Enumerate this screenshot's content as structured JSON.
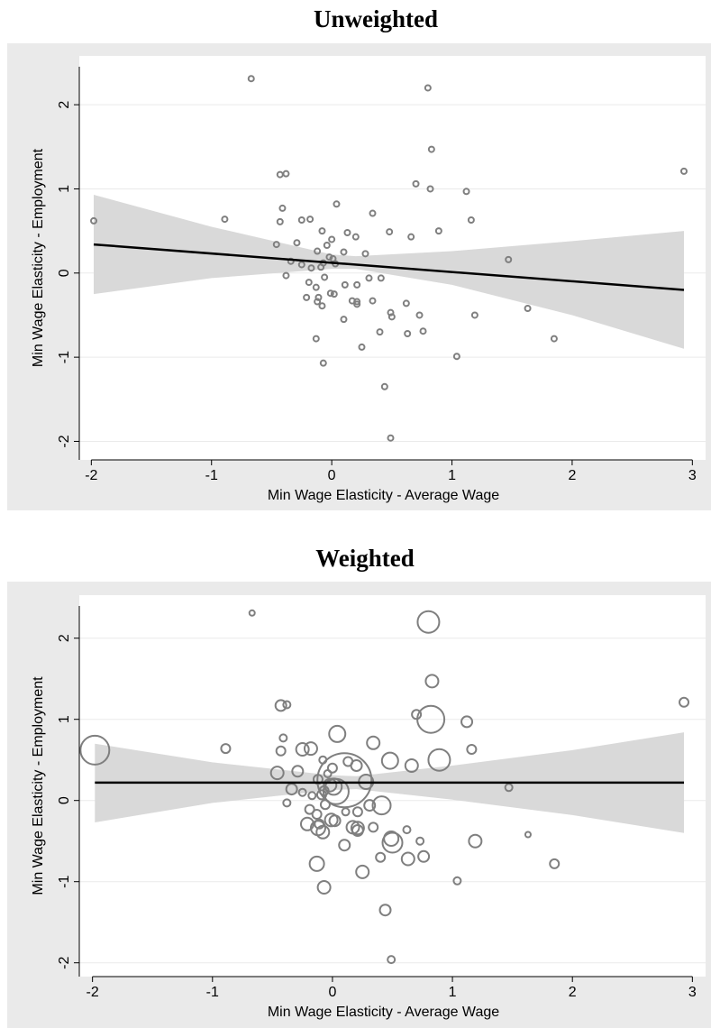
{
  "chart_data": [
    {
      "type": "scatter",
      "title": "Unweighted",
      "xlabel": "Min Wage Elasticity - Average Wage",
      "ylabel": "Min Wage Elasticity - Employment",
      "x": [
        -0.67,
        0.8,
        -1.98,
        2.93,
        0.83,
        -0.43,
        -0.38,
        0.7,
        0.82,
        1.12,
        -0.89,
        -0.41,
        0.04,
        0.34,
        -0.43,
        -0.18,
        -0.25,
        1.16,
        -0.08,
        0.48,
        0.89,
        0.66,
        0.13,
        0.2,
        0.0,
        -0.46,
        -0.29,
        -0.04,
        -0.12,
        0.1,
        0.28,
        -0.34,
        -0.02,
        0.01,
        -0.07,
        -0.25,
        0.03,
        -0.09,
        -0.17,
        1.47,
        -0.38,
        -0.06,
        0.31,
        0.41,
        0.11,
        0.21,
        -0.19,
        -0.13,
        -0.01,
        0.02,
        -0.21,
        -0.12,
        0.17,
        0.21,
        0.34,
        -0.11,
        -0.08,
        0.21,
        0.62,
        0.49,
        0.5,
        0.73,
        1.19,
        1.63,
        0.1,
        0.76,
        0.4,
        0.63,
        -0.13,
        1.85,
        0.25,
        1.04,
        -0.07,
        0.44,
        0.49
      ],
      "y": [
        2.31,
        2.2,
        0.62,
        1.21,
        1.47,
        1.17,
        1.18,
        1.06,
        1.0,
        0.97,
        0.64,
        0.77,
        0.82,
        0.71,
        0.61,
        0.64,
        0.63,
        0.63,
        0.5,
        0.49,
        0.5,
        0.43,
        0.48,
        0.43,
        0.4,
        0.34,
        0.36,
        0.33,
        0.26,
        0.25,
        0.23,
        0.14,
        0.19,
        0.17,
        0.12,
        0.1,
        0.11,
        0.07,
        0.06,
        0.16,
        -0.03,
        -0.05,
        -0.06,
        -0.06,
        -0.14,
        -0.14,
        -0.11,
        -0.17,
        -0.24,
        -0.25,
        -0.29,
        -0.34,
        -0.33,
        -0.34,
        -0.33,
        -0.29,
        -0.39,
        -0.37,
        -0.36,
        -0.47,
        -0.52,
        -0.5,
        -0.5,
        -0.42,
        -0.55,
        -0.69,
        -0.7,
        -0.72,
        -0.78,
        -0.78,
        -0.88,
        -0.99,
        -1.07,
        -1.35,
        -1.96
      ],
      "color": "#7f7f7f",
      "fit": {
        "x": [
          -1.98,
          2.93
        ],
        "y": [
          0.34,
          -0.2
        ],
        "color": "#000000"
      },
      "ci": {
        "x": [
          -1.98,
          -1,
          0,
          0.2,
          1,
          2,
          2.93
        ],
        "upper": [
          0.93,
          0.55,
          0.22,
          0.2,
          0.26,
          0.38,
          0.5
        ],
        "lower": [
          -0.25,
          -0.06,
          0.05,
          0.05,
          -0.14,
          -0.5,
          -0.9
        ],
        "color": "#d9d9d9"
      },
      "xlim": [
        -2.1,
        3.11
      ],
      "ylim": [
        -2.22,
        2.58
      ],
      "xticks": [
        -2,
        -1,
        0,
        1,
        2,
        3
      ],
      "yticks": [
        -2,
        -1,
        0,
        1,
        2
      ],
      "grid": true
    },
    {
      "type": "scatter",
      "title": "Weighted",
      "xlabel": "Min Wage Elasticity - Average Wage",
      "ylabel": "Min Wage Elasticity - Employment",
      "x": [
        -0.67,
        0.8,
        -1.98,
        2.93,
        0.83,
        -0.43,
        -0.38,
        0.7,
        0.82,
        1.12,
        -0.89,
        -0.41,
        0.04,
        0.34,
        -0.43,
        -0.18,
        -0.25,
        1.16,
        -0.08,
        0.48,
        0.89,
        0.66,
        0.13,
        0.2,
        0.0,
        -0.46,
        -0.29,
        -0.04,
        -0.12,
        0.1,
        0.28,
        -0.34,
        -0.02,
        0.01,
        -0.07,
        -0.25,
        0.03,
        -0.09,
        -0.17,
        1.47,
        -0.38,
        -0.06,
        0.31,
        0.41,
        0.11,
        0.21,
        -0.19,
        -0.13,
        -0.01,
        0.02,
        -0.21,
        -0.12,
        0.17,
        0.21,
        0.34,
        -0.11,
        -0.08,
        0.21,
        0.62,
        0.49,
        0.5,
        0.73,
        1.19,
        1.63,
        0.1,
        0.76,
        0.4,
        0.63,
        -0.13,
        1.85,
        0.25,
        1.04,
        -0.07,
        0.44,
        0.49
      ],
      "y": [
        2.31,
        2.2,
        0.62,
        1.21,
        1.47,
        1.17,
        1.18,
        1.06,
        1.0,
        0.97,
        0.64,
        0.77,
        0.82,
        0.71,
        0.61,
        0.64,
        0.63,
        0.63,
        0.5,
        0.49,
        0.5,
        0.43,
        0.48,
        0.43,
        0.4,
        0.34,
        0.36,
        0.33,
        0.26,
        0.25,
        0.23,
        0.14,
        0.19,
        0.17,
        0.12,
        0.1,
        0.11,
        0.07,
        0.06,
        0.16,
        -0.03,
        -0.05,
        -0.06,
        -0.06,
        -0.14,
        -0.14,
        -0.11,
        -0.17,
        -0.24,
        -0.25,
        -0.29,
        -0.34,
        -0.33,
        -0.34,
        -0.33,
        -0.29,
        -0.39,
        -0.37,
        -0.36,
        -0.47,
        -0.52,
        -0.5,
        -0.5,
        -0.42,
        -0.55,
        -0.69,
        -0.7,
        -0.72,
        -0.78,
        -0.78,
        -0.88,
        -0.99,
        -1.07,
        -1.35,
        -1.96
      ],
      "sizes": [
        3,
        12,
        16,
        5,
        7,
        6,
        4,
        5,
        15,
        6,
        5,
        4,
        9,
        7,
        5,
        7,
        7,
        5,
        4,
        9,
        12,
        7,
        5,
        6,
        5,
        7,
        6,
        4,
        5,
        30,
        8,
        6,
        7,
        9,
        5,
        4,
        14,
        5,
        4,
        4,
        4,
        5,
        6,
        10,
        4,
        5,
        5,
        5,
        7,
        6,
        7,
        8,
        7,
        7,
        5,
        5,
        7,
        6,
        4,
        8,
        11,
        4,
        7,
        3,
        6,
        6,
        5,
        7,
        8,
        5,
        7,
        4,
        7,
        6,
        4
      ],
      "color": "#7f7f7f",
      "fit": {
        "x": [
          -1.98,
          2.93
        ],
        "y": [
          0.22,
          0.22
        ],
        "color": "#000000"
      },
      "ci": {
        "x": [
          -1.98,
          -1,
          0,
          0.2,
          1,
          2,
          2.93
        ],
        "upper": [
          0.7,
          0.47,
          0.31,
          0.3,
          0.43,
          0.62,
          0.84
        ],
        "lower": [
          -0.27,
          -0.03,
          0.13,
          0.14,
          0.01,
          -0.18,
          -0.4
        ],
        "color": "#d9d9d9"
      },
      "xlim": [
        -2.11,
        3.11
      ],
      "ylim": [
        -2.17,
        2.53
      ],
      "xticks": [
        -2,
        -1,
        0,
        1,
        2,
        3
      ],
      "yticks": [
        -2,
        -1,
        0,
        1,
        2
      ],
      "grid": true
    }
  ]
}
